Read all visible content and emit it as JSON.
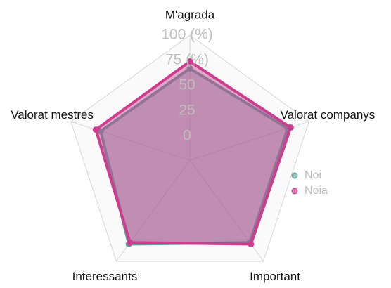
{
  "chart_data": {
    "type": "radar",
    "categories": [
      "M'agrada",
      "Valorat companys",
      "Important",
      "Interessants",
      "Valorat mestres"
    ],
    "series": [
      {
        "name": "Noi",
        "color": "#5f9e9b",
        "values": [
          67,
          78,
          77,
          79,
          69
        ]
      },
      {
        "name": "Noia",
        "color": "#cc3d8f",
        "values": [
          74,
          81,
          79,
          77,
          74
        ]
      }
    ],
    "ylim": [
      0,
      100
    ],
    "yticks": [
      0,
      25,
      50,
      {
        "value": 75,
        "label": "75 (%)"
      },
      {
        "value": 100,
        "label": "100 (%)"
      }
    ],
    "grid": true,
    "legend": "right"
  }
}
